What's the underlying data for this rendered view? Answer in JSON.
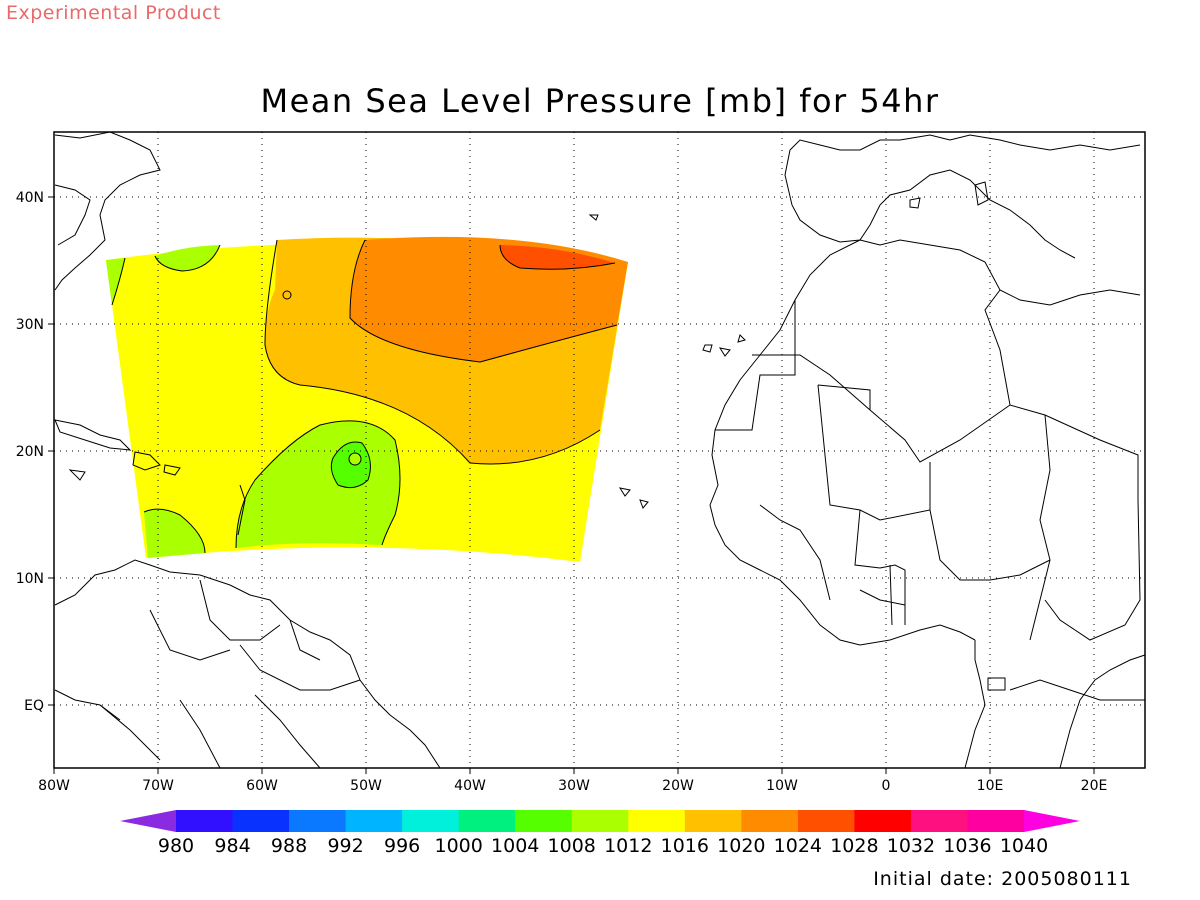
{
  "header": {
    "tag": "Experimental Product",
    "title": "Mean Sea Level Pressure [mb] for 54hr",
    "initial_date": "Initial date: 2005080111"
  },
  "map": {
    "lon_range": [
      -80,
      25
    ],
    "lat_range": [
      -5,
      45
    ],
    "lon_ticks": [
      "80W",
      "70W",
      "60W",
      "50W",
      "40W",
      "30W",
      "20W",
      "10W",
      "0",
      "10E",
      "20E"
    ],
    "lat_ticks": [
      "EQ",
      "10N",
      "20N",
      "30N",
      "40N"
    ],
    "fill_colors": {
      "l1008": "#aaff00",
      "l1012": "#ffff00",
      "l1016": "#ffc000",
      "l1020": "#ff8c00",
      "l1024": "#ff5000",
      "l1004": "#55ff00"
    }
  },
  "colorbar": {
    "levels": [
      "980",
      "984",
      "988",
      "992",
      "996",
      "1000",
      "1004",
      "1008",
      "1012",
      "1016",
      "1020",
      "1024",
      "1028",
      "1032",
      "1036",
      "1040"
    ],
    "colors": [
      "#8a2be2",
      "#3010ff",
      "#0a32ff",
      "#0a78ff",
      "#00b4ff",
      "#00f0dc",
      "#00f080",
      "#55ff00",
      "#aaff00",
      "#ffff00",
      "#ffc000",
      "#ff8c00",
      "#ff5000",
      "#ff0000",
      "#ff1080",
      "#ff00a0",
      "#ff00e0"
    ]
  }
}
